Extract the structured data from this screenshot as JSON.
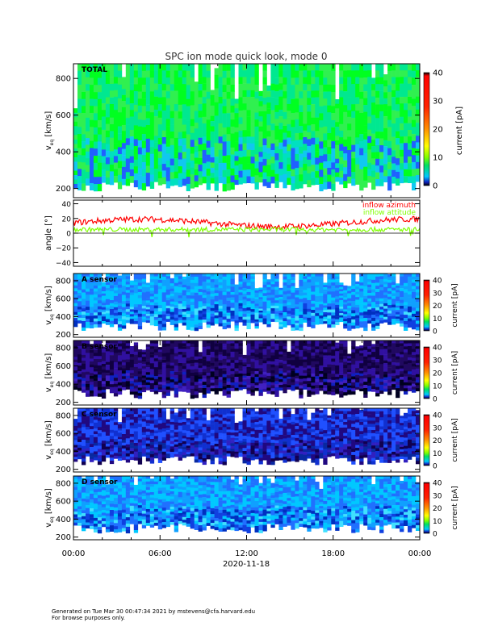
{
  "chart_data": {
    "type": "heatmap",
    "title": "SPC ion mode quick look, mode 0",
    "xlabel": "2020-11-18",
    "x_ticks": [
      "00:00",
      "06:00",
      "12:00",
      "18:00",
      "00:00"
    ],
    "xlim_hours": [
      0,
      24
    ],
    "panels": [
      {
        "label": "TOTAL",
        "ylabel": "v_eq [km/s]",
        "ylabel_main": "v",
        "ylabel_sub": "eq",
        "ylabel_unit": "[km/s]",
        "ylim": [
          150,
          880
        ],
        "y_ticks": [
          200,
          400,
          600,
          800
        ],
        "colorbar": {
          "label": "current [pA]",
          "ticks": [
            0,
            10,
            20,
            30,
            40
          ],
          "range": [
            0,
            40
          ]
        },
        "dominant_level": 3
      },
      {
        "label": "angle",
        "type": "line",
        "ylabel": "angle [°]",
        "ylim": [
          -45,
          45
        ],
        "y_ticks": [
          40,
          20,
          0,
          -20,
          -40
        ],
        "y_tick_labels": [
          "40",
          "20",
          "0",
          "−20",
          "−40"
        ],
        "series": [
          {
            "name": "inflow azimuth",
            "color": "#ff0000",
            "typical_range": [
              5,
              20
            ]
          },
          {
            "name": "inflow attitude",
            "color": "#80ff00",
            "typical_range": [
              -5,
              8
            ]
          }
        ]
      },
      {
        "label": "A sensor",
        "ylabel": "v_eq [km/s]",
        "ylim": [
          170,
          880
        ],
        "y_ticks": [
          200,
          400,
          600,
          800
        ],
        "colorbar": {
          "label": "current [pA]",
          "ticks": [
            0,
            10,
            20,
            30,
            40
          ]
        },
        "dominant_level": 0.8
      },
      {
        "label": "B sensor",
        "ylabel": "v_eq [km/s]",
        "ylim": [
          170,
          880
        ],
        "y_ticks": [
          200,
          400,
          600,
          800
        ],
        "colorbar": {
          "label": "current [pA]",
          "ticks": [
            0,
            10,
            20,
            30,
            40
          ]
        },
        "dominant_level": 0.1
      },
      {
        "label": "C sensor",
        "ylabel": "v_eq [km/s]",
        "ylim": [
          170,
          880
        ],
        "y_ticks": [
          200,
          400,
          600,
          800
        ],
        "colorbar": {
          "label": "current [pA]",
          "ticks": [
            0,
            10,
            20,
            30,
            40
          ]
        },
        "dominant_level": 0.3
      },
      {
        "label": "D sensor",
        "ylabel": "v_eq [km/s]",
        "ylim": [
          170,
          880
        ],
        "y_ticks": [
          200,
          400,
          600,
          800
        ],
        "colorbar": {
          "label": "current [pA]",
          "ticks": [
            0,
            10,
            20,
            30,
            40
          ]
        },
        "dominant_level": 0.8
      }
    ]
  },
  "footer": {
    "generated": "Generated on Tue Mar 30 00:47:34 2021 by mstevens@cfa.harvard.edu",
    "note": "For browse purposes only."
  }
}
